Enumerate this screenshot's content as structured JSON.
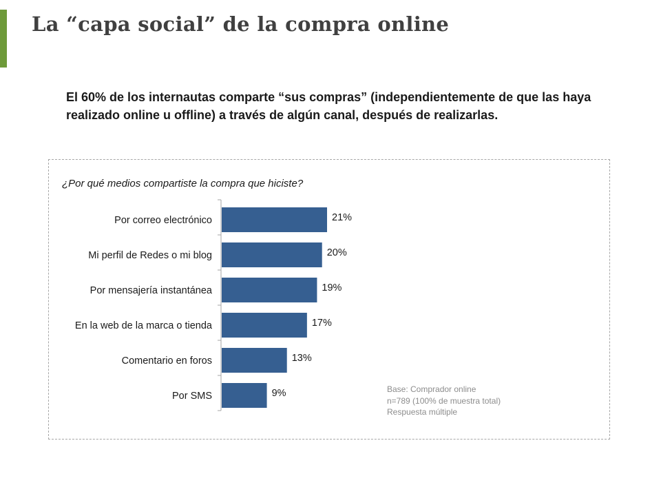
{
  "slide": {
    "title": "La “capa social” de la compra online",
    "lead": "El 60% de los internautas comparte “sus compras” (independientemente de que las haya realizado online u offline) a través de algún canal, después de realizarlas.",
    "accent_color": "#6e9a3a"
  },
  "chart_data": {
    "type": "bar",
    "orientation": "horizontal",
    "title": "¿Por qué medios compartiste la compra que hiciste?",
    "categories": [
      "Por correo electrónico",
      "Mi perfil de Redes o mi blog",
      "Por mensajería instantánea",
      "En la web de la marca o tienda",
      "Comentario en foros",
      "Por SMS"
    ],
    "values": [
      21,
      20,
      19,
      17,
      13,
      9
    ],
    "value_labels": [
      "21%",
      "20%",
      "19%",
      "17%",
      "13%",
      "9%"
    ],
    "unit": "%",
    "xlim": [
      0,
      21
    ],
    "bar_color": "#365f91",
    "grid": false,
    "legend": "none"
  },
  "notes": {
    "base": "Base: Comprador online",
    "sample": "n=789 (100% de muestra total)",
    "response": "Respuesta múltiple"
  }
}
